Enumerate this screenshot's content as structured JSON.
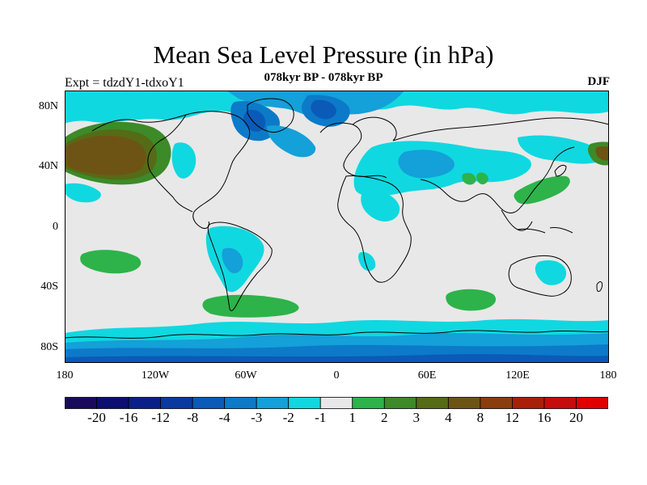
{
  "title": "Mean Sea Level Pressure (in hPa)",
  "subtitle": "078kyr BP - 078kyr BP",
  "experiment": "Expt = tdzdY1-tdxoY1",
  "season": "DJF",
  "lat_labels": [
    "80N",
    "40N",
    "0",
    "40S",
    "80S"
  ],
  "lon_labels": [
    "180",
    "120W",
    "60W",
    "0",
    "60E",
    "120E",
    "180"
  ],
  "colorbar": {
    "labels": [
      "-20",
      "-16",
      "-12",
      "-8",
      "-4",
      "-3",
      "-2",
      "-1",
      "1",
      "2",
      "3",
      "4",
      "8",
      "12",
      "16",
      "20"
    ],
    "colors": [
      "#1a0a5c",
      "#0d0f70",
      "#0a2088",
      "#0a3aa0",
      "#0b5ab8",
      "#0c7ac8",
      "#14a0d8",
      "#10d8e0",
      "#e8e8e8",
      "#2db34a",
      "#3c8a28",
      "#556b16",
      "#6e5414",
      "#8a3e0e",
      "#a8200a",
      "#c60c0c",
      "#e00000"
    ]
  },
  "colors": {
    "neutral": "#e8e8e8",
    "light_negative": "#10d8e0",
    "mid_negative": "#14a0d8",
    "strong_negative": "#0c7ac8",
    "deep_negative": "#0b5ab8",
    "light_positive": "#2db34a",
    "mid_positive": "#3c8a28",
    "high_positive": "#6e5414"
  }
}
